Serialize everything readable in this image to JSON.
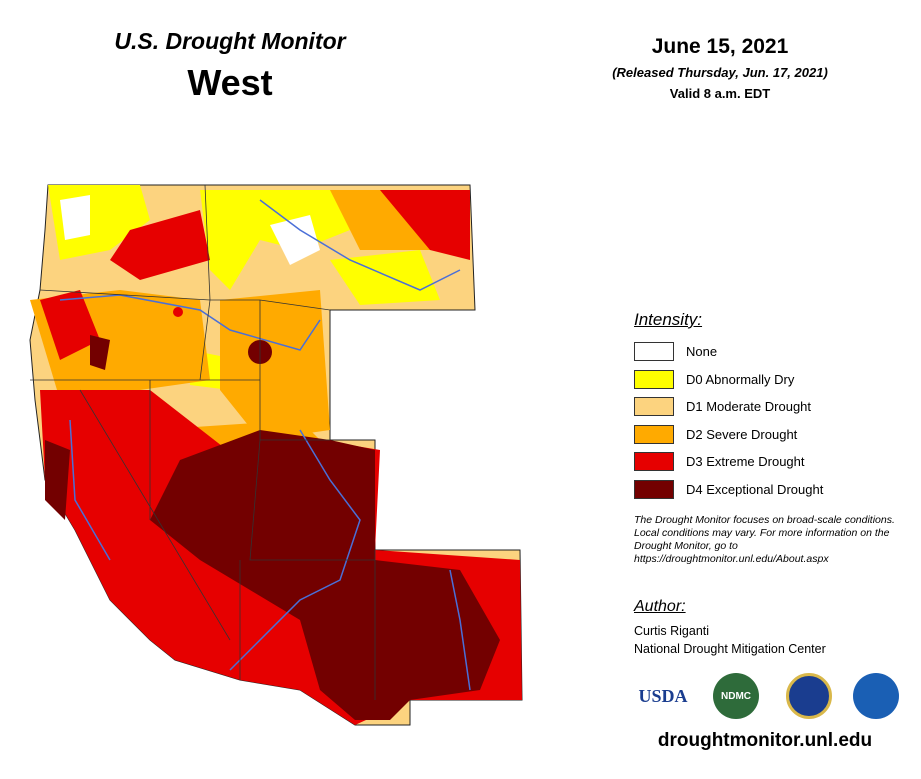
{
  "header": {
    "title": "U.S. Drought Monitor",
    "region": "West"
  },
  "dates": {
    "date": "June 15, 2021",
    "released": "(Released Thursday, Jun. 17, 2021)",
    "valid": "Valid 8 a.m. EDT"
  },
  "legend": {
    "title": "Intensity:",
    "items": [
      {
        "label": "None",
        "color": "#ffffff"
      },
      {
        "label": "D0 Abnormally Dry",
        "color": "#ffff00"
      },
      {
        "label": "D1 Moderate Drought",
        "color": "#fcd37f"
      },
      {
        "label": "D2 Severe Drought",
        "color": "#ffaa00"
      },
      {
        "label": "D3 Extreme Drought",
        "color": "#e60000"
      },
      {
        "label": "D4 Exceptional Drought",
        "color": "#730000"
      }
    ]
  },
  "note": "The Drought Monitor focuses on broad-scale conditions. Local conditions may vary. For more information on the Drought Monitor, go to https://droughtmonitor.unl.edu/About.aspx",
  "author": {
    "title": "Author:",
    "name": "Curtis Riganti",
    "organization": "National Drought Mitigation Center"
  },
  "logos": [
    "USDA",
    "NDMC"
  ],
  "url": "droughtmonitor.unl.edu"
}
